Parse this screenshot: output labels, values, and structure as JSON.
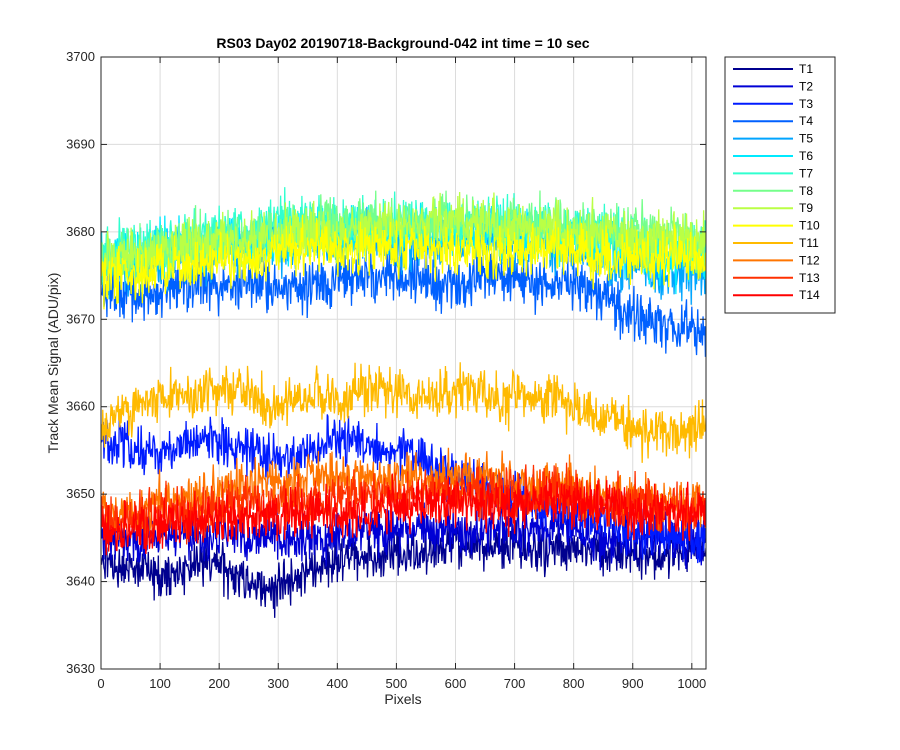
{
  "chart_data": {
    "type": "line",
    "title": "RS03 Day02 20190718-Background-042 int time = 10 sec",
    "xlabel": "Pixels",
    "ylabel": "Track Mean Signal (ADU/pix)",
    "xlim": [
      0,
      1024
    ],
    "ylim": [
      3630,
      3700
    ],
    "x_ticks": [
      0,
      100,
      200,
      300,
      400,
      500,
      600,
      700,
      800,
      900,
      1000
    ],
    "y_ticks": [
      3630,
      3640,
      3650,
      3660,
      3670,
      3680,
      3690,
      3700
    ],
    "grid": true,
    "legend_position": "outside-top-right",
    "x_sample_step": 32,
    "x": [
      0,
      32,
      64,
      96,
      128,
      160,
      192,
      224,
      256,
      288,
      320,
      352,
      384,
      416,
      448,
      480,
      512,
      544,
      576,
      608,
      640,
      672,
      704,
      736,
      768,
      800,
      832,
      864,
      896,
      928,
      960,
      992,
      1024
    ],
    "series": [
      {
        "name": "T1",
        "color": "#00008F",
        "values": [
          3642,
          3642,
          3641,
          3641,
          3641,
          3642,
          3642,
          3641,
          3640,
          3639,
          3640,
          3641,
          3642,
          3643,
          3643,
          3643,
          3643,
          3643,
          3644,
          3644,
          3644,
          3644,
          3644,
          3644,
          3644,
          3644,
          3644,
          3643,
          3643,
          3643,
          3643,
          3644,
          3644
        ]
      },
      {
        "name": "T2",
        "color": "#0000D5",
        "values": [
          3645,
          3645,
          3645,
          3645,
          3645,
          3645,
          3645,
          3645,
          3645,
          3645,
          3645,
          3645,
          3645,
          3645,
          3646,
          3646,
          3646,
          3646,
          3646,
          3646,
          3646,
          3646,
          3646,
          3646,
          3646,
          3646,
          3645,
          3645,
          3645,
          3645,
          3645,
          3645,
          3645
        ]
      },
      {
        "name": "T3",
        "color": "#001BFF",
        "values": [
          3656,
          3656,
          3655,
          3655,
          3655,
          3656,
          3656,
          3655,
          3655,
          3654,
          3654,
          3655,
          3656,
          3656,
          3656,
          3655,
          3655,
          3654,
          3653,
          3652,
          3651,
          3650,
          3650,
          3649,
          3648,
          3648,
          3647,
          3647,
          3646,
          3646,
          3645,
          3645,
          3645
        ]
      },
      {
        "name": "T4",
        "color": "#0060FF",
        "values": [
          3673,
          3673,
          3673,
          3673,
          3674,
          3674,
          3674,
          3674,
          3674,
          3674,
          3674,
          3674,
          3674,
          3675,
          3675,
          3675,
          3675,
          3675,
          3674,
          3674,
          3675,
          3675,
          3675,
          3674,
          3674,
          3674,
          3673,
          3672,
          3671,
          3670,
          3669,
          3669,
          3668
        ]
      },
      {
        "name": "T5",
        "color": "#00A5FF",
        "values": [
          3676,
          3676,
          3676,
          3677,
          3677,
          3677,
          3678,
          3678,
          3678,
          3678,
          3678,
          3679,
          3679,
          3679,
          3679,
          3679,
          3679,
          3679,
          3679,
          3679,
          3679,
          3679,
          3679,
          3679,
          3678,
          3678,
          3678,
          3677,
          3676,
          3676,
          3675,
          3675,
          3675
        ]
      },
      {
        "name": "T6",
        "color": "#00EAFF",
        "values": [
          3677,
          3677,
          3677,
          3678,
          3678,
          3678,
          3679,
          3679,
          3679,
          3679,
          3680,
          3680,
          3680,
          3680,
          3680,
          3680,
          3680,
          3680,
          3680,
          3680,
          3680,
          3680,
          3680,
          3680,
          3679,
          3679,
          3679,
          3678,
          3678,
          3677,
          3677,
          3677,
          3677
        ]
      },
      {
        "name": "T7",
        "color": "#30FFCF",
        "values": [
          3678,
          3678,
          3678,
          3679,
          3679,
          3679,
          3680,
          3680,
          3680,
          3681,
          3681,
          3681,
          3681,
          3681,
          3681,
          3681,
          3681,
          3681,
          3681,
          3681,
          3681,
          3681,
          3681,
          3681,
          3680,
          3680,
          3680,
          3680,
          3679,
          3679,
          3678,
          3678,
          3678
        ]
      },
      {
        "name": "T8",
        "color": "#75FF8A",
        "values": [
          3677,
          3677,
          3677,
          3678,
          3678,
          3679,
          3679,
          3679,
          3679,
          3680,
          3680,
          3680,
          3681,
          3681,
          3681,
          3681,
          3681,
          3681,
          3681,
          3681,
          3681,
          3681,
          3681,
          3681,
          3681,
          3680,
          3680,
          3680,
          3680,
          3680,
          3680,
          3679,
          3679
        ]
      },
      {
        "name": "T9",
        "color": "#BAFF45",
        "values": [
          3677,
          3677,
          3677,
          3678,
          3678,
          3678,
          3679,
          3679,
          3679,
          3679,
          3680,
          3680,
          3680,
          3680,
          3680,
          3681,
          3681,
          3681,
          3681,
          3681,
          3681,
          3681,
          3681,
          3680,
          3680,
          3680,
          3680,
          3680,
          3679,
          3679,
          3679,
          3679,
          3679
        ]
      },
      {
        "name": "T10",
        "color": "#FFFF00",
        "values": [
          3675,
          3675,
          3675,
          3676,
          3676,
          3676,
          3677,
          3677,
          3677,
          3677,
          3678,
          3678,
          3678,
          3678,
          3678,
          3678,
          3678,
          3678,
          3678,
          3678,
          3678,
          3678,
          3678,
          3678,
          3678,
          3678,
          3677,
          3677,
          3677,
          3677,
          3677,
          3677,
          3676
        ]
      },
      {
        "name": "T11",
        "color": "#FFBA00",
        "values": [
          3658,
          3659,
          3660,
          3661,
          3661,
          3661,
          3662,
          3662,
          3661,
          3660,
          3661,
          3661,
          3661,
          3661,
          3662,
          3662,
          3661,
          3661,
          3661,
          3662,
          3662,
          3661,
          3661,
          3661,
          3661,
          3660,
          3659,
          3659,
          3658,
          3657,
          3657,
          3657,
          3658
        ]
      },
      {
        "name": "T12",
        "color": "#FF7500",
        "values": [
          3648,
          3648,
          3648,
          3649,
          3649,
          3650,
          3650,
          3651,
          3651,
          3651,
          3651,
          3652,
          3652,
          3652,
          3652,
          3652,
          3652,
          3652,
          3652,
          3652,
          3652,
          3652,
          3651,
          3651,
          3651,
          3651,
          3650,
          3650,
          3650,
          3649,
          3649,
          3649,
          3649
        ]
      },
      {
        "name": "T13",
        "color": "#FF3000",
        "values": [
          3647,
          3647,
          3647,
          3648,
          3648,
          3648,
          3648,
          3649,
          3649,
          3649,
          3649,
          3649,
          3649,
          3650,
          3650,
          3650,
          3650,
          3650,
          3650,
          3650,
          3650,
          3650,
          3650,
          3650,
          3650,
          3650,
          3649,
          3649,
          3649,
          3649,
          3648,
          3648,
          3648
        ]
      },
      {
        "name": "T14",
        "color": "#FF0000",
        "values": [
          3646,
          3646,
          3646,
          3646,
          3647,
          3647,
          3647,
          3647,
          3647,
          3648,
          3648,
          3648,
          3648,
          3648,
          3648,
          3649,
          3649,
          3649,
          3649,
          3649,
          3649,
          3649,
          3649,
          3649,
          3649,
          3649,
          3649,
          3649,
          3648,
          3648,
          3648,
          3648,
          3648
        ]
      }
    ]
  }
}
